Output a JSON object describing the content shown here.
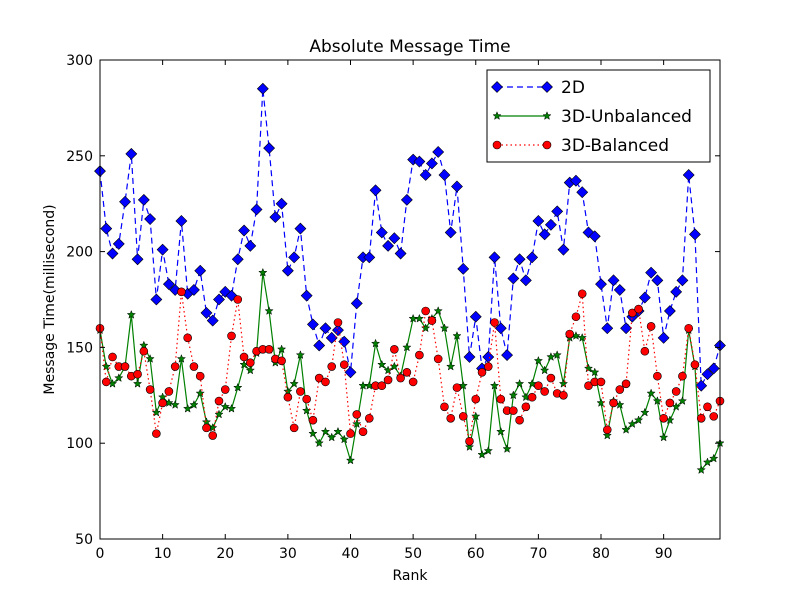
{
  "chart_data": {
    "type": "line",
    "title": "Absolute Message Time",
    "xlabel": "Rank",
    "ylabel": "Message Time(millisecond)",
    "xlim": [
      0,
      99
    ],
    "ylim": [
      50,
      300
    ],
    "xticks": [
      0,
      10,
      20,
      30,
      40,
      50,
      60,
      70,
      80,
      90
    ],
    "yticks": [
      50,
      100,
      150,
      200,
      250,
      300
    ],
    "grid": false,
    "legend_position": "top-right",
    "series": [
      {
        "name": "2D",
        "color": "#0000ff",
        "marker": "diamond",
        "linestyle": "dashed",
        "values": [
          242,
          212,
          199,
          204,
          226,
          251,
          196,
          227,
          217,
          175,
          201,
          183,
          180,
          216,
          178,
          180,
          190,
          168,
          164,
          175,
          179,
          177,
          196,
          211,
          203,
          222,
          285,
          254,
          218,
          225,
          190,
          197,
          212,
          177,
          162,
          151,
          160,
          155,
          159,
          153,
          137,
          173,
          197,
          197,
          232,
          210,
          203,
          207,
          199,
          227,
          248,
          247,
          240,
          246,
          252,
          240,
          210,
          234,
          191,
          145,
          166,
          139,
          145,
          197,
          160,
          146,
          186,
          196,
          185,
          197,
          216,
          209,
          214,
          221,
          201,
          236,
          237,
          231,
          210,
          208,
          183,
          160,
          185,
          180,
          160,
          166,
          169,
          176,
          189,
          185,
          155,
          169,
          179,
          185,
          240,
          209,
          130,
          136,
          139,
          151
        ]
      },
      {
        "name": "3D-Unbalanced",
        "color": "#008000",
        "marker": "star",
        "linestyle": "solid",
        "values": [
          159,
          140,
          131,
          134,
          140,
          167,
          131,
          151,
          144,
          116,
          124,
          121,
          120,
          144,
          118,
          120,
          126,
          111,
          108,
          115,
          119,
          118,
          129,
          141,
          138,
          147,
          189,
          169,
          142,
          149,
          127,
          131,
          146,
          117,
          105,
          100,
          106,
          103,
          106,
          102,
          91,
          110,
          130,
          130,
          152,
          141,
          138,
          140,
          135,
          150,
          165,
          165,
          160,
          165,
          169,
          160,
          140,
          156,
          130,
          98,
          114,
          94,
          96,
          130,
          106,
          97,
          125,
          131,
          124,
          131,
          143,
          138,
          145,
          146,
          131,
          155,
          156,
          155,
          139,
          137,
          121,
          104,
          122,
          120,
          107,
          110,
          112,
          116,
          126,
          122,
          103,
          112,
          119,
          122,
          159,
          140,
          86,
          90,
          92,
          100
        ]
      },
      {
        "name": "3D-Balanced",
        "color": "#ff0000",
        "marker": "circle",
        "linestyle": "dotted",
        "values": [
          160,
          132,
          145,
          140,
          140,
          135,
          136,
          148,
          128,
          105,
          121,
          127,
          140,
          179,
          155,
          140,
          135,
          108,
          104,
          122,
          128,
          156,
          175,
          145,
          142,
          148,
          149,
          149,
          144,
          143,
          124,
          108,
          127,
          123,
          112,
          134,
          132,
          140,
          163,
          141,
          105,
          115,
          106,
          113,
          130,
          130,
          133,
          149,
          134,
          137,
          132,
          146,
          169,
          164,
          144,
          119,
          113,
          129,
          114,
          101,
          123,
          137,
          140,
          163,
          123,
          117,
          117,
          112,
          119,
          124,
          130,
          127,
          134,
          126,
          125,
          157,
          166,
          178,
          130,
          132,
          132,
          107,
          121,
          128,
          131,
          168,
          170,
          148,
          161,
          135,
          113,
          121,
          127,
          135,
          160,
          141,
          113,
          119,
          114,
          122
        ]
      }
    ]
  }
}
